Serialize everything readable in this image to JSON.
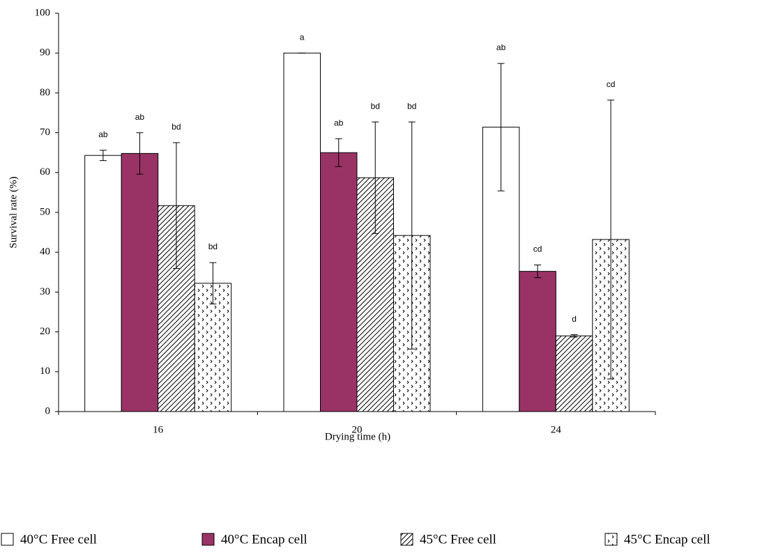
{
  "chart_data": {
    "type": "bar",
    "x_label": "Drying time (h)",
    "y_label": "Survival rate (%)",
    "categories": [
      "16",
      "20",
      "24"
    ],
    "ylim": [
      0,
      100
    ],
    "yticks": [
      0,
      10,
      20,
      30,
      40,
      50,
      60,
      70,
      80,
      90,
      100
    ],
    "series": [
      {
        "name": "40°C Free cell",
        "color": "#ffffff",
        "pattern": "solid",
        "values": [
          64.3,
          90,
          71.4
        ],
        "errors": [
          1.3,
          0,
          16
        ],
        "letters": [
          "ab",
          "a",
          "ab"
        ]
      },
      {
        "name": "40°C Encap cell",
        "color": "#993366",
        "pattern": "solid",
        "values": [
          64.8,
          65,
          35.2
        ],
        "errors": [
          5.2,
          3.5,
          1.6
        ],
        "letters": [
          "ab",
          "ab",
          "cd"
        ]
      },
      {
        "name": "45°C Free cell",
        "color": "#000000",
        "pattern": "diagonal",
        "values": [
          51.7,
          58.7,
          19
        ],
        "errors": [
          15.8,
          14,
          0.3
        ],
        "letters": [
          "bd",
          "bd",
          "d"
        ]
      },
      {
        "name": "45°C Encap cell",
        "color": "#000000",
        "pattern": "dots",
        "values": [
          32.2,
          44.2,
          43.2
        ],
        "errors": [
          5.2,
          28.5,
          35
        ],
        "letters": [
          "bd",
          "bd",
          "cd"
        ]
      }
    ]
  }
}
